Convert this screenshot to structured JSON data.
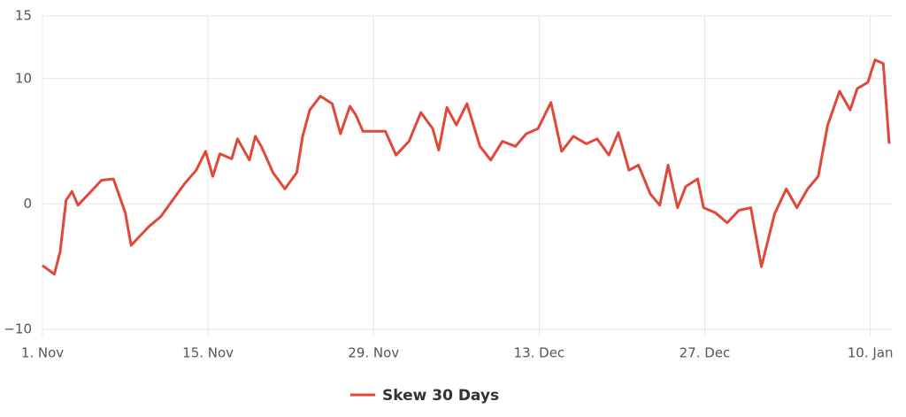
{
  "chart_data": {
    "type": "line",
    "series": [
      {
        "name": "Skew 30 Days",
        "color": "#e0483a",
        "x": [
          0,
          1.0,
          1.5,
          2.0,
          2.5,
          3.0,
          4.0,
          5.0,
          6.0,
          7.0,
          7.5,
          8.0,
          9.0,
          10.0,
          11.0,
          12.0,
          13.0,
          13.8,
          14.4,
          15.0,
          16.0,
          16.5,
          17.5,
          18.0,
          18.5,
          19.5,
          20.5,
          21.5,
          22.0,
          22.6,
          23.5,
          24.5,
          25.2,
          26.0,
          26.5,
          27.1,
          28.0,
          29.0,
          29.9,
          31.0,
          32.0,
          33.0,
          33.5,
          34.2,
          35.0,
          35.9,
          37.0,
          37.9,
          38.9,
          40.0,
          40.9,
          41.9,
          43.0,
          43.9,
          44.9,
          46.0,
          46.9,
          47.9,
          48.7,
          49.6,
          50.4,
          51.4,
          52.2,
          52.9,
          53.7,
          54.4,
          55.4,
          55.9,
          56.9,
          57.9,
          58.9,
          59.9,
          60.8,
          61.9,
          62.9,
          63.8,
          64.7,
          65.6,
          66.4,
          67.4,
          68.3,
          68.9,
          69.8,
          70.4,
          71.1,
          71.6
        ],
        "values": [
          -4.9,
          -5.6,
          -3.8,
          0.3,
          1.0,
          -0.1,
          0.9,
          1.9,
          2.0,
          -0.7,
          -3.3,
          -2.8,
          -1.8,
          -1.0,
          0.3,
          1.6,
          2.7,
          4.2,
          2.2,
          4.0,
          3.6,
          5.2,
          3.5,
          5.4,
          4.6,
          2.5,
          1.2,
          2.5,
          5.4,
          7.5,
          8.6,
          8.0,
          5.6,
          7.8,
          7.1,
          5.8,
          5.8,
          5.8,
          3.9,
          5.0,
          7.3,
          6.0,
          4.3,
          7.7,
          6.3,
          8.0,
          4.6,
          3.5,
          5.0,
          4.6,
          5.6,
          6.0,
          8.1,
          4.2,
          5.4,
          4.8,
          5.2,
          3.9,
          5.7,
          2.7,
          3.1,
          0.8,
          -0.1,
          3.1,
          -0.3,
          1.4,
          2.0,
          -0.3,
          -0.7,
          -1.5,
          -0.5,
          -0.3,
          -5.0,
          -0.8,
          1.2,
          -0.3,
          1.2,
          2.2,
          6.3,
          9.0,
          7.5,
          9.2,
          9.7,
          11.5,
          11.2,
          4.8
        ]
      }
    ],
    "xlim": [
      0,
      71.6
    ],
    "xticks": [
      {
        "value": 0,
        "label": "1. Nov"
      },
      {
        "value": 14,
        "label": "15. Nov"
      },
      {
        "value": 28,
        "label": "29. Nov"
      },
      {
        "value": 42,
        "label": "13. Dec"
      },
      {
        "value": 56,
        "label": "27. Dec"
      },
      {
        "value": 70,
        "label": "10. Jan"
      }
    ],
    "ylim": [
      -10,
      15
    ],
    "yticks": [
      {
        "value": -10,
        "label": "−10"
      },
      0,
      10,
      15
    ],
    "grid": true
  }
}
